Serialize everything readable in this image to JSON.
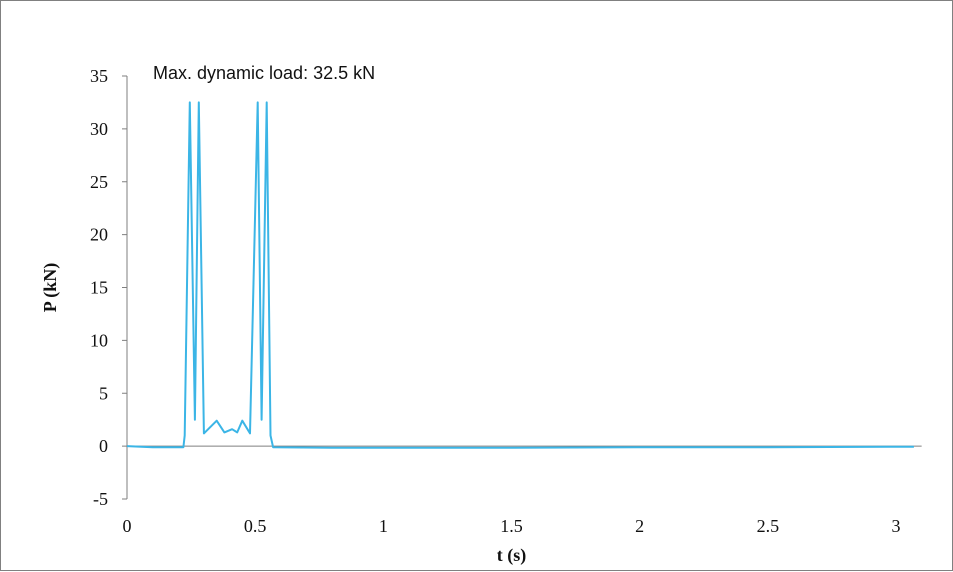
{
  "chart_data": {
    "type": "line",
    "title": "",
    "annotation": "Max. dynamic load: 32.5 kN",
    "xlabel": "t (s)",
    "ylabel": "P (kN)",
    "xlim": [
      0,
      3.1
    ],
    "ylim": [
      -5,
      35
    ],
    "xticks": [
      0,
      0.5,
      1,
      1.5,
      2,
      2.5,
      3
    ],
    "xtick_labels": [
      "0",
      "0.5",
      "1",
      "1.5",
      "2",
      "2.5",
      "3"
    ],
    "yticks": [
      -5,
      0,
      5,
      10,
      15,
      20,
      25,
      30,
      35
    ],
    "ytick_labels": [
      "-5",
      "0",
      "5",
      "10",
      "15",
      "20",
      "25",
      "30",
      "35"
    ],
    "grid": false,
    "legend": "none",
    "series": [
      {
        "color": "#3BB5E6",
        "x": [
          0,
          0.1,
          0.22,
          0.225,
          0.245,
          0.265,
          0.28,
          0.3,
          0.35,
          0.38,
          0.41,
          0.43,
          0.45,
          0.48,
          0.51,
          0.525,
          0.545,
          0.56,
          0.57,
          0.8,
          1.5,
          2.0,
          2.5,
          3.07
        ],
        "y": [
          0,
          -0.1,
          -0.1,
          1.0,
          32.5,
          2.5,
          32.5,
          1.2,
          2.4,
          1.3,
          1.6,
          1.3,
          2.4,
          1.2,
          32.5,
          2.5,
          32.5,
          1.0,
          -0.1,
          -0.15,
          -0.15,
          -0.1,
          -0.1,
          -0.05
        ]
      }
    ],
    "zero_line_color": "#7f7f7f"
  }
}
